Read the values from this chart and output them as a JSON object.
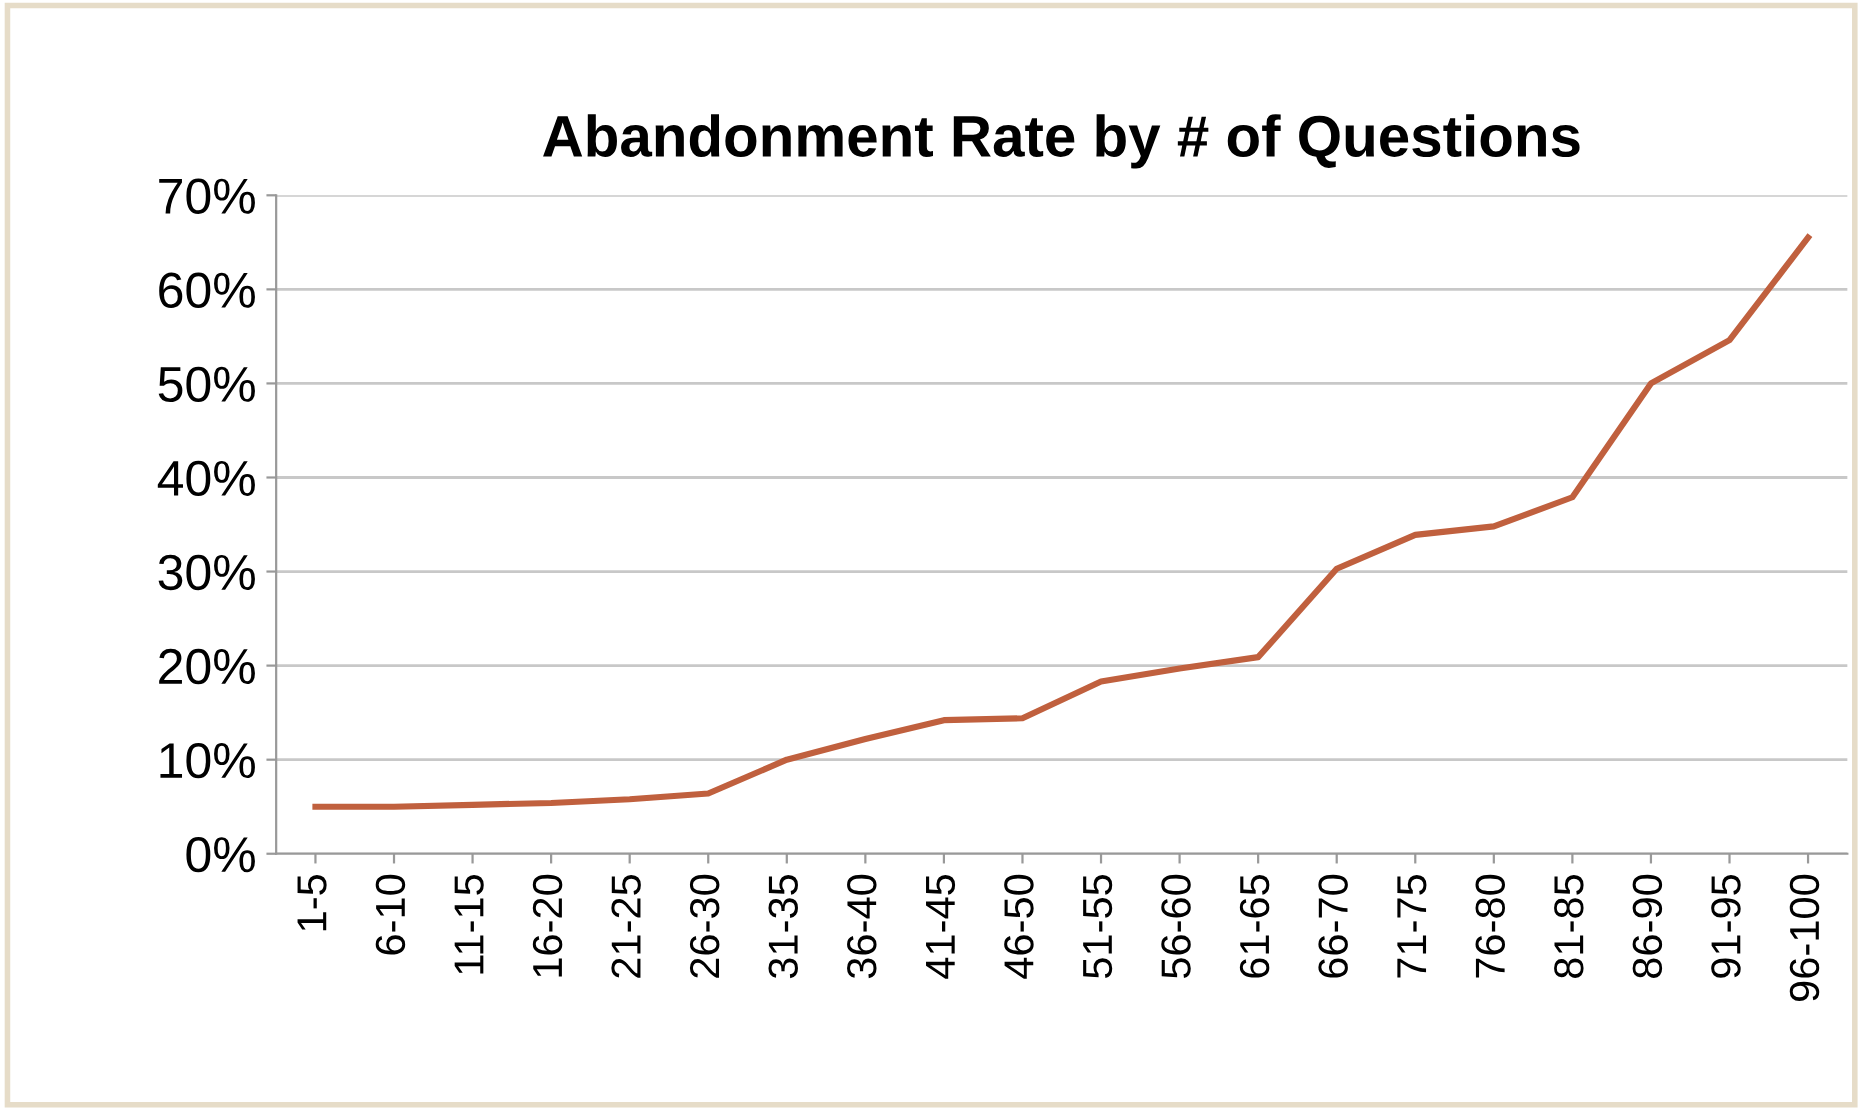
{
  "chart_data": {
    "type": "line",
    "title": "Abandonment Rate by # of Questions",
    "categories": [
      "1-5",
      "6-10",
      "11-15",
      "16-20",
      "21-25",
      "26-30",
      "31-35",
      "36-40",
      "41-45",
      "46-50",
      "51-55",
      "56-60",
      "61-65",
      "66-70",
      "71-75",
      "76-80",
      "81-85",
      "86-90",
      "91-95",
      "96-100"
    ],
    "series": [
      {
        "color": "#c0603e",
        "values": [
          5.0,
          5.0,
          5.2,
          5.4,
          5.8,
          6.4,
          10.0,
          12.2,
          14.2,
          14.4,
          18.3,
          19.7,
          20.9,
          30.3,
          33.9,
          34.8,
          37.9,
          50.0,
          54.6,
          65.5
        ]
      }
    ],
    "ylim": [
      0,
      70
    ],
    "yticks": [
      {
        "value": 0,
        "label": "0%"
      },
      {
        "value": 10,
        "label": "10%"
      },
      {
        "value": 20,
        "label": "20%"
      },
      {
        "value": 30,
        "label": "30%"
      },
      {
        "value": 40,
        "label": "40%"
      },
      {
        "value": 50,
        "label": "50%"
      },
      {
        "value": 60,
        "label": "60%"
      },
      {
        "value": 70,
        "label": "70%"
      }
    ],
    "grid": "y",
    "marker": "none",
    "line_style": "solid"
  }
}
